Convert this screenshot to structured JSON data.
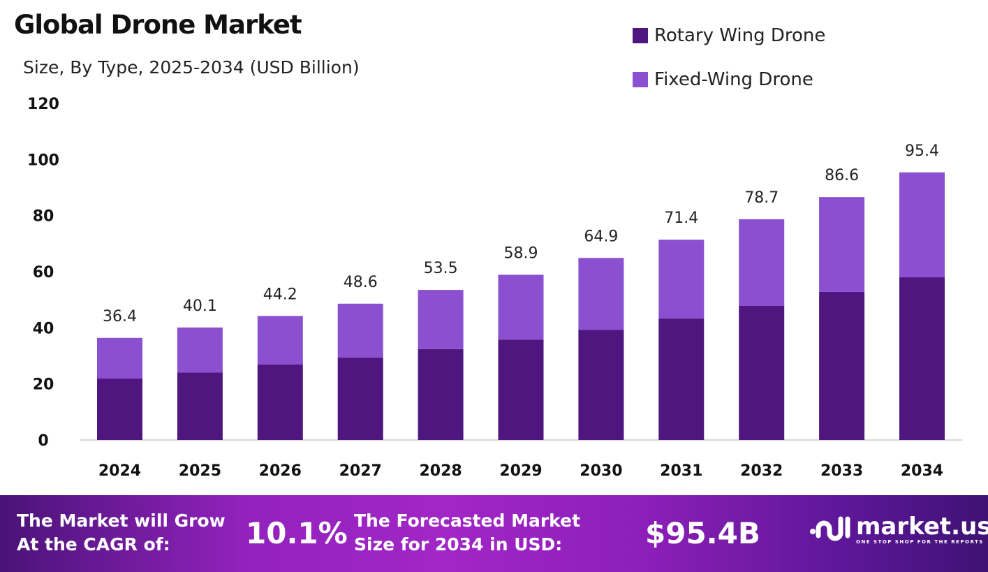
{
  "title": "Global Drone Market",
  "subtitle": "Size, By Type, 2025-2034 (USD Billion)",
  "colors": {
    "rotary": "#4f167f",
    "fixed": "#8b50cf",
    "footer_start": "#4a1378",
    "footer_mid": "#a126c6"
  },
  "chart_data": {
    "type": "bar",
    "stacked": true,
    "categories": [
      "2024",
      "2025",
      "2026",
      "2027",
      "2028",
      "2029",
      "2030",
      "2031",
      "2032",
      "2033",
      "2034"
    ],
    "series": [
      {
        "name": "Rotary Wing Drone",
        "values": [
          21.9,
          24.1,
          26.9,
          29.4,
          32.4,
          35.8,
          39.3,
          43.3,
          47.8,
          52.8,
          58.0
        ]
      },
      {
        "name": "Fixed-Wing Drone",
        "values": [
          14.5,
          16.0,
          17.3,
          19.2,
          21.1,
          23.1,
          25.6,
          28.1,
          30.9,
          33.8,
          37.4
        ]
      }
    ],
    "totals": [
      "36.4",
      "40.1",
      "44.2",
      "48.6",
      "53.5",
      "58.9",
      "64.9",
      "71.4",
      "78.7",
      "86.6",
      "95.4"
    ],
    "yticks": [
      "0",
      "20",
      "40",
      "60",
      "80",
      "100",
      "120"
    ],
    "ylim": [
      0,
      120
    ],
    "grid": false,
    "legend": "top-right"
  },
  "footer": {
    "cagr_label_1": "The Market will Grow",
    "cagr_label_2": "At the CAGR of:",
    "cagr_value": "10.1%",
    "size_label_1": "The Forecasted Market",
    "size_label_2": "Size for 2034 in USD:",
    "size_value": "$95.4B",
    "logo_name": "market.us",
    "logo_tagline": "ONE STOP SHOP FOR THE REPORTS"
  }
}
